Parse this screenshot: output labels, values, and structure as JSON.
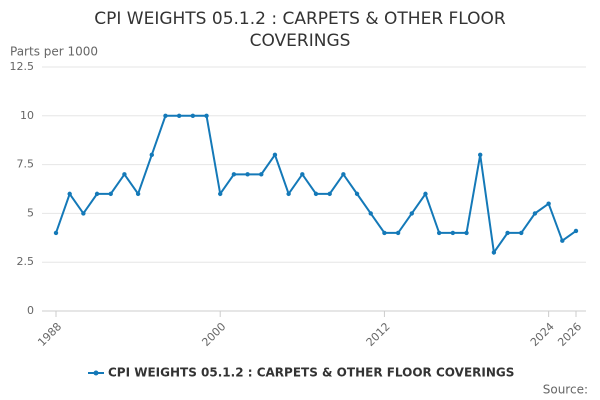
{
  "chart_data": {
    "type": "line",
    "title": "CPI WEIGHTS 05.1.2 : CARPETS & OTHER FLOOR COVERINGS",
    "y_label": "Parts per 1000",
    "source": "Source:",
    "x": [
      1988,
      1989,
      1990,
      1991,
      1992,
      1993,
      1994,
      1995,
      1996,
      1997,
      1998,
      1999,
      2000,
      2001,
      2002,
      2003,
      2004,
      2005,
      2006,
      2007,
      2008,
      2009,
      2010,
      2011,
      2012,
      2013,
      2014,
      2015,
      2016,
      2017,
      2018,
      2019,
      2020,
      2021,
      2022,
      2023,
      2024,
      2025,
      2026
    ],
    "series": [
      {
        "name": "CPI WEIGHTS 05.1.2 : CARPETS & OTHER FLOOR COVERINGS",
        "color": "#1479b8",
        "values": [
          4,
          6,
          5,
          6,
          6,
          7,
          6,
          8,
          10,
          10,
          10,
          10,
          6,
          7,
          7,
          7,
          8,
          6,
          7,
          6,
          6,
          7,
          6,
          5,
          4,
          4,
          5,
          6,
          4,
          4,
          4,
          8,
          3,
          4,
          4,
          5,
          5.5,
          3.6,
          4.1
        ]
      }
    ],
    "xlim": [
      1988,
      2026
    ],
    "xticks": [
      1988,
      2000,
      2012,
      2024,
      2026
    ],
    "ylim": [
      0,
      12.5
    ],
    "yticks": [
      0,
      2.5,
      5,
      7.5,
      10,
      12.5
    ],
    "grid": true
  }
}
